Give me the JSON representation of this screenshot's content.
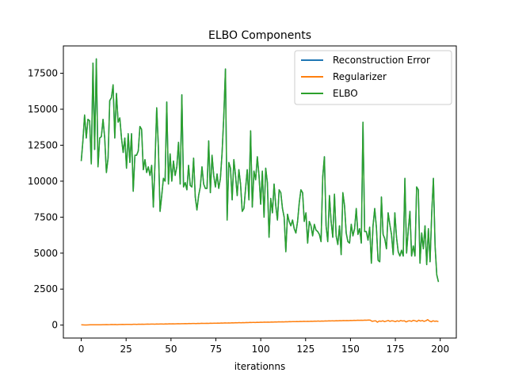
{
  "chart_data": {
    "type": "line",
    "title": "ELBO Components",
    "xlabel": "iterationns",
    "ylabel": "",
    "xlim": [
      -9.95,
      208.95
    ],
    "ylim": [
      -900,
      19400
    ],
    "xticks": [
      0,
      25,
      50,
      75,
      100,
      125,
      150,
      175,
      200
    ],
    "yticks": [
      0,
      2500,
      5000,
      7500,
      10000,
      12500,
      15000,
      17500
    ],
    "grid": false,
    "legend_position": "upper right",
    "x_range": [
      0,
      199
    ],
    "series": [
      {
        "name": "Reconstruction Error",
        "color": "#1f77b4",
        "values": [
          11400,
          12800,
          14600,
          13000,
          14300,
          14200,
          11200,
          18200,
          12200,
          18500,
          11000,
          13000,
          13100,
          14300,
          13000,
          10600,
          11600,
          15600,
          15800,
          16700,
          13000,
          16100,
          14100,
          14400,
          13000,
          12000,
          13000,
          10900,
          13300,
          11300,
          13300,
          9300,
          11800,
          11800,
          12100,
          13800,
          13600,
          10800,
          11500,
          10600,
          11000,
          10400,
          11100,
          8200,
          11300,
          15100,
          12400,
          7900,
          9000,
          10200,
          10000,
          15500,
          9800,
          11900,
          10000,
          11400,
          10400,
          11000,
          12700,
          9800,
          16000,
          9600,
          9900,
          9400,
          11100,
          9700,
          9600,
          11600,
          8900,
          8000,
          9000,
          9600,
          11000,
          9800,
          9500,
          9500,
          12800,
          9200,
          11800,
          10400,
          9600,
          10500,
          9500,
          10200,
          12000,
          14500,
          17800,
          7300,
          11300,
          10900,
          8700,
          11500,
          10400,
          9000,
          10800,
          9800,
          7900,
          8100,
          9500,
          10800,
          8700,
          13500,
          8200,
          10700,
          10100,
          11700,
          10400,
          8400,
          10700,
          7500,
          10900,
          9900,
          6100,
          8800,
          7800,
          9800,
          8300,
          7300,
          9400,
          9200,
          8100,
          7500,
          5100,
          7700,
          7200,
          6900,
          7300,
          6700,
          6400,
          7200,
          8500,
          9400,
          9200,
          7200,
          7800,
          5700,
          7200,
          6900,
          6200,
          7000,
          6600,
          6500,
          6300,
          5800,
          10300,
          11700,
          6900,
          5800,
          9000,
          7200,
          6100,
          9100,
          6200,
          5600,
          6900,
          4900,
          9200,
          8300,
          6400,
          5800,
          5700,
          7000,
          6200,
          6700,
          8100,
          6300,
          6700,
          5700,
          14100,
          6500,
          6500,
          5900,
          6800,
          4300,
          6900,
          8100,
          6800,
          4500,
          4400,
          8900,
          6300,
          6000,
          5300,
          7800,
          7000,
          6300,
          4900,
          7800,
          6100,
          5100,
          4800,
          5200,
          4800,
          10200,
          5000,
          6600,
          7900,
          4800,
          5500,
          4800,
          9600,
          9400,
          4300,
          6400,
          5300,
          6900,
          4200,
          6700,
          4400,
          7800,
          10200,
          5500,
          3500,
          3000
        ]
      },
      {
        "name": "Regularizer",
        "color": "#ff7f0e",
        "values": [
          20,
          15,
          10,
          8,
          15,
          20,
          18,
          25,
          20,
          22,
          18,
          25,
          30,
          28,
          35,
          30,
          32,
          40,
          38,
          42,
          30,
          45,
          40,
          48,
          42,
          50,
          48,
          52,
          45,
          55,
          58,
          50,
          60,
          55,
          62,
          58,
          65,
          70,
          62,
          68,
          72,
          65,
          75,
          70,
          80,
          78,
          72,
          85,
          80,
          88,
          82,
          90,
          85,
          92,
          95,
          88,
          100,
          95,
          105,
          98,
          110,
          102,
          108,
          112,
          105,
          118,
          110,
          122,
          115,
          120,
          125,
          118,
          130,
          125,
          135,
          128,
          140,
          132,
          145,
          138,
          150,
          142,
          155,
          148,
          160,
          152,
          165,
          158,
          170,
          162,
          175,
          168,
          180,
          172,
          185,
          178,
          190,
          182,
          195,
          188,
          200,
          192,
          205,
          198,
          210,
          202,
          215,
          208,
          220,
          212,
          225,
          218,
          230,
          222,
          235,
          228,
          240,
          232,
          245,
          238,
          250,
          242,
          255,
          248,
          260,
          252,
          265,
          258,
          270,
          262,
          275,
          268,
          280,
          272,
          285,
          278,
          290,
          282,
          295,
          288,
          300,
          292,
          305,
          298,
          310,
          302,
          315,
          308,
          320,
          312,
          325,
          318,
          330,
          322,
          335,
          328,
          340,
          332,
          345,
          338,
          350,
          342,
          260,
          280,
          300,
          200,
          280,
          260,
          300,
          240,
          280,
          320,
          260,
          300,
          280,
          240,
          300,
          260,
          320,
          280,
          300,
          220,
          280,
          300,
          260,
          330,
          300,
          250,
          340,
          280,
          320,
          260,
          300,
          380,
          280,
          230,
          300,
          260,
          280,
          240
        ]
      },
      {
        "name": "ELBO",
        "color": "#2ca02c",
        "values": [
          11400,
          12800,
          14600,
          13000,
          14300,
          14200,
          11200,
          18200,
          12200,
          18500,
          11000,
          13000,
          13100,
          14300,
          13000,
          10600,
          11600,
          15600,
          15800,
          16700,
          13000,
          16100,
          14100,
          14400,
          13000,
          12000,
          13000,
          10900,
          13300,
          11300,
          13300,
          9300,
          11800,
          11800,
          12100,
          13800,
          13600,
          10800,
          11500,
          10600,
          11000,
          10400,
          11100,
          8200,
          11300,
          15100,
          12400,
          7900,
          9000,
          10200,
          10000,
          15500,
          9800,
          11900,
          10000,
          11400,
          10400,
          11000,
          12700,
          9800,
          16000,
          9600,
          9900,
          9400,
          11100,
          9700,
          9600,
          11600,
          8900,
          8000,
          9000,
          9600,
          11000,
          9800,
          9500,
          9500,
          12800,
          9200,
          11800,
          10400,
          9600,
          10500,
          9500,
          10200,
          12000,
          14500,
          17800,
          7300,
          11300,
          10900,
          8700,
          11500,
          10400,
          9000,
          10800,
          9800,
          7900,
          8100,
          9500,
          10800,
          8700,
          13500,
          8200,
          10700,
          10100,
          11700,
          10400,
          8400,
          10700,
          7500,
          10900,
          9900,
          6100,
          8800,
          7800,
          9800,
          8300,
          7300,
          9400,
          9200,
          8100,
          7500,
          5100,
          7700,
          7200,
          6900,
          7300,
          6700,
          6400,
          7200,
          8500,
          9400,
          9200,
          7200,
          7800,
          5700,
          7200,
          6900,
          6200,
          7000,
          6600,
          6500,
          6300,
          5800,
          10300,
          11700,
          6900,
          5800,
          9000,
          7200,
          6100,
          9100,
          6200,
          5600,
          6900,
          4900,
          9200,
          8300,
          6400,
          5800,
          5700,
          7000,
          6200,
          6700,
          8100,
          6300,
          6700,
          5700,
          14100,
          6500,
          6500,
          5900,
          6800,
          4300,
          6900,
          8100,
          6800,
          4500,
          4400,
          8900,
          6300,
          6000,
          5300,
          7800,
          7000,
          6300,
          4900,
          7800,
          6100,
          5100,
          4800,
          5200,
          4800,
          10200,
          5000,
          6600,
          7900,
          4800,
          5500,
          4800,
          9600,
          9400,
          4300,
          6400,
          5300,
          6900,
          4200,
          6700,
          4400,
          7800,
          10200,
          5500,
          3500,
          3000
        ]
      }
    ]
  }
}
